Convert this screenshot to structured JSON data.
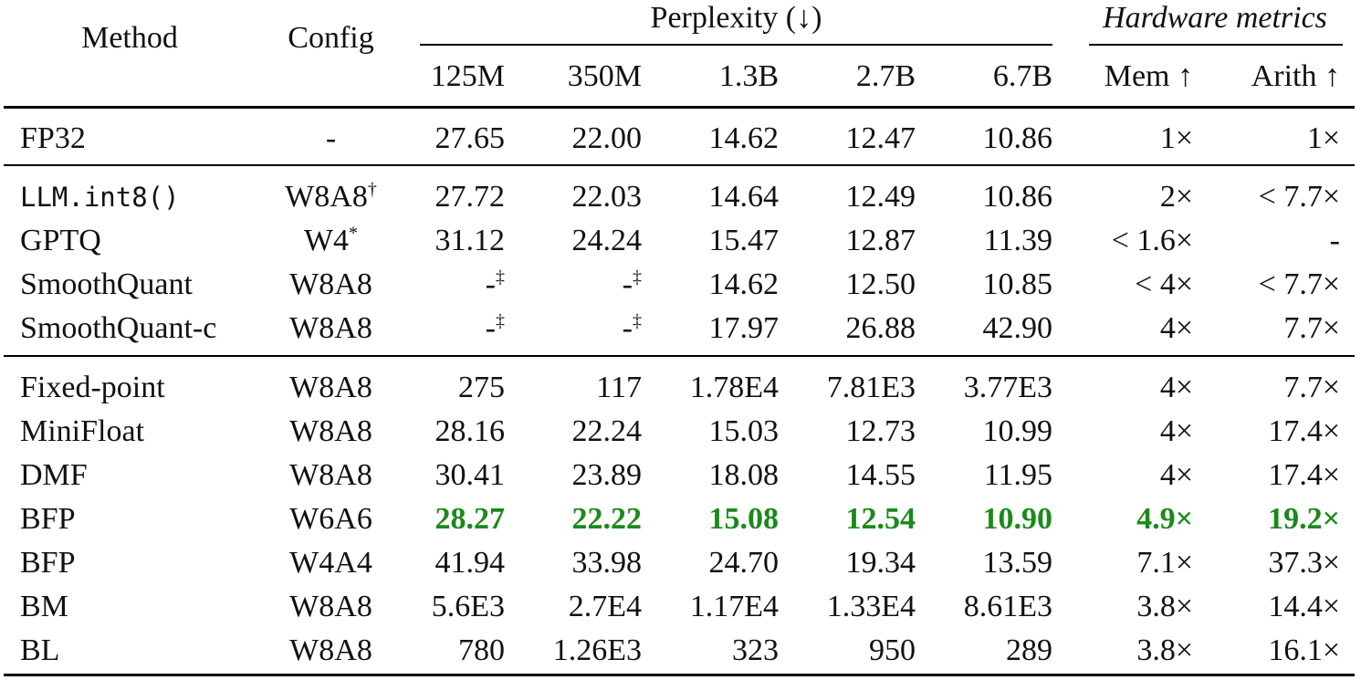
{
  "header": {
    "method": "Method",
    "config": "Config",
    "perplexity_group": "Perplexity (↓)",
    "hardware_group": "Hardware metrics",
    "model_sizes": [
      "125M",
      "350M",
      "1.3B",
      "2.7B",
      "6.7B"
    ],
    "hardware_cols": [
      "Mem ↑",
      "Arith ↑"
    ]
  },
  "rows": [
    {
      "method": "FP32",
      "config": "-",
      "ppl": [
        "27.65",
        "22.00",
        "14.62",
        "12.47",
        "10.86"
      ],
      "mem": "1×",
      "arith": "1×"
    },
    {
      "method": "LLM.int8()",
      "config": "W8A8",
      "config_sup": "†",
      "ppl": [
        "27.72",
        "22.03",
        "14.64",
        "12.49",
        "10.86"
      ],
      "mem": "2×",
      "arith": "< 7.7×"
    },
    {
      "method": "GPTQ",
      "config": "W4",
      "config_sup": "*",
      "ppl": [
        "31.12",
        "24.24",
        "15.47",
        "12.87",
        "11.39"
      ],
      "mem": "< 1.6×",
      "arith": "-"
    },
    {
      "method": "SmoothQuant",
      "config": "W8A8",
      "ppl": [
        "-",
        "-",
        "14.62",
        "12.50",
        "10.85"
      ],
      "ppl_sup": [
        "‡",
        "‡",
        "",
        "",
        ""
      ],
      "mem": "< 4×",
      "arith": "< 7.7×"
    },
    {
      "method": "SmoothQuant-c",
      "config": "W8A8",
      "ppl": [
        "-",
        "-",
        "17.97",
        "26.88",
        "42.90"
      ],
      "ppl_sup": [
        "‡",
        "‡",
        "",
        "",
        ""
      ],
      "mem": "4×",
      "arith": "7.7×"
    },
    {
      "method": "Fixed-point",
      "config": "W8A8",
      "ppl": [
        "275",
        "117",
        "1.78E4",
        "7.81E3",
        "3.77E3"
      ],
      "mem": "4×",
      "arith": "7.7×"
    },
    {
      "method": "MiniFloat",
      "config": "W8A8",
      "ppl": [
        "28.16",
        "22.24",
        "15.03",
        "12.73",
        "10.99"
      ],
      "mem": "4×",
      "arith": "17.4×"
    },
    {
      "method": "DMF",
      "config": "W8A8",
      "ppl": [
        "30.41",
        "23.89",
        "18.08",
        "14.55",
        "11.95"
      ],
      "mem": "4×",
      "arith": "17.4×"
    },
    {
      "method": "BFP",
      "config": "W6A6",
      "ppl": [
        "28.27",
        "22.22",
        "15.08",
        "12.54",
        "10.90"
      ],
      "mem": "4.9×",
      "arith": "19.2×",
      "highlight": true
    },
    {
      "method": "BFP",
      "config": "W4A4",
      "ppl": [
        "41.94",
        "33.98",
        "24.70",
        "19.34",
        "13.59"
      ],
      "mem": "7.1×",
      "arith": "37.3×"
    },
    {
      "method": "BM",
      "config": "W8A8",
      "ppl": [
        "5.6E3",
        "2.7E4",
        "1.17E4",
        "1.33E4",
        "8.61E3"
      ],
      "mem": "3.8×",
      "arith": "14.4×"
    },
    {
      "method": "BL",
      "config": "W8A8",
      "ppl": [
        "780",
        "1.26E3",
        "323",
        "950",
        "289"
      ],
      "mem": "3.8×",
      "arith": "16.1×"
    }
  ],
  "colors": {
    "highlight": "#1a8a1a",
    "text": "#111111",
    "rule": "#000000"
  }
}
